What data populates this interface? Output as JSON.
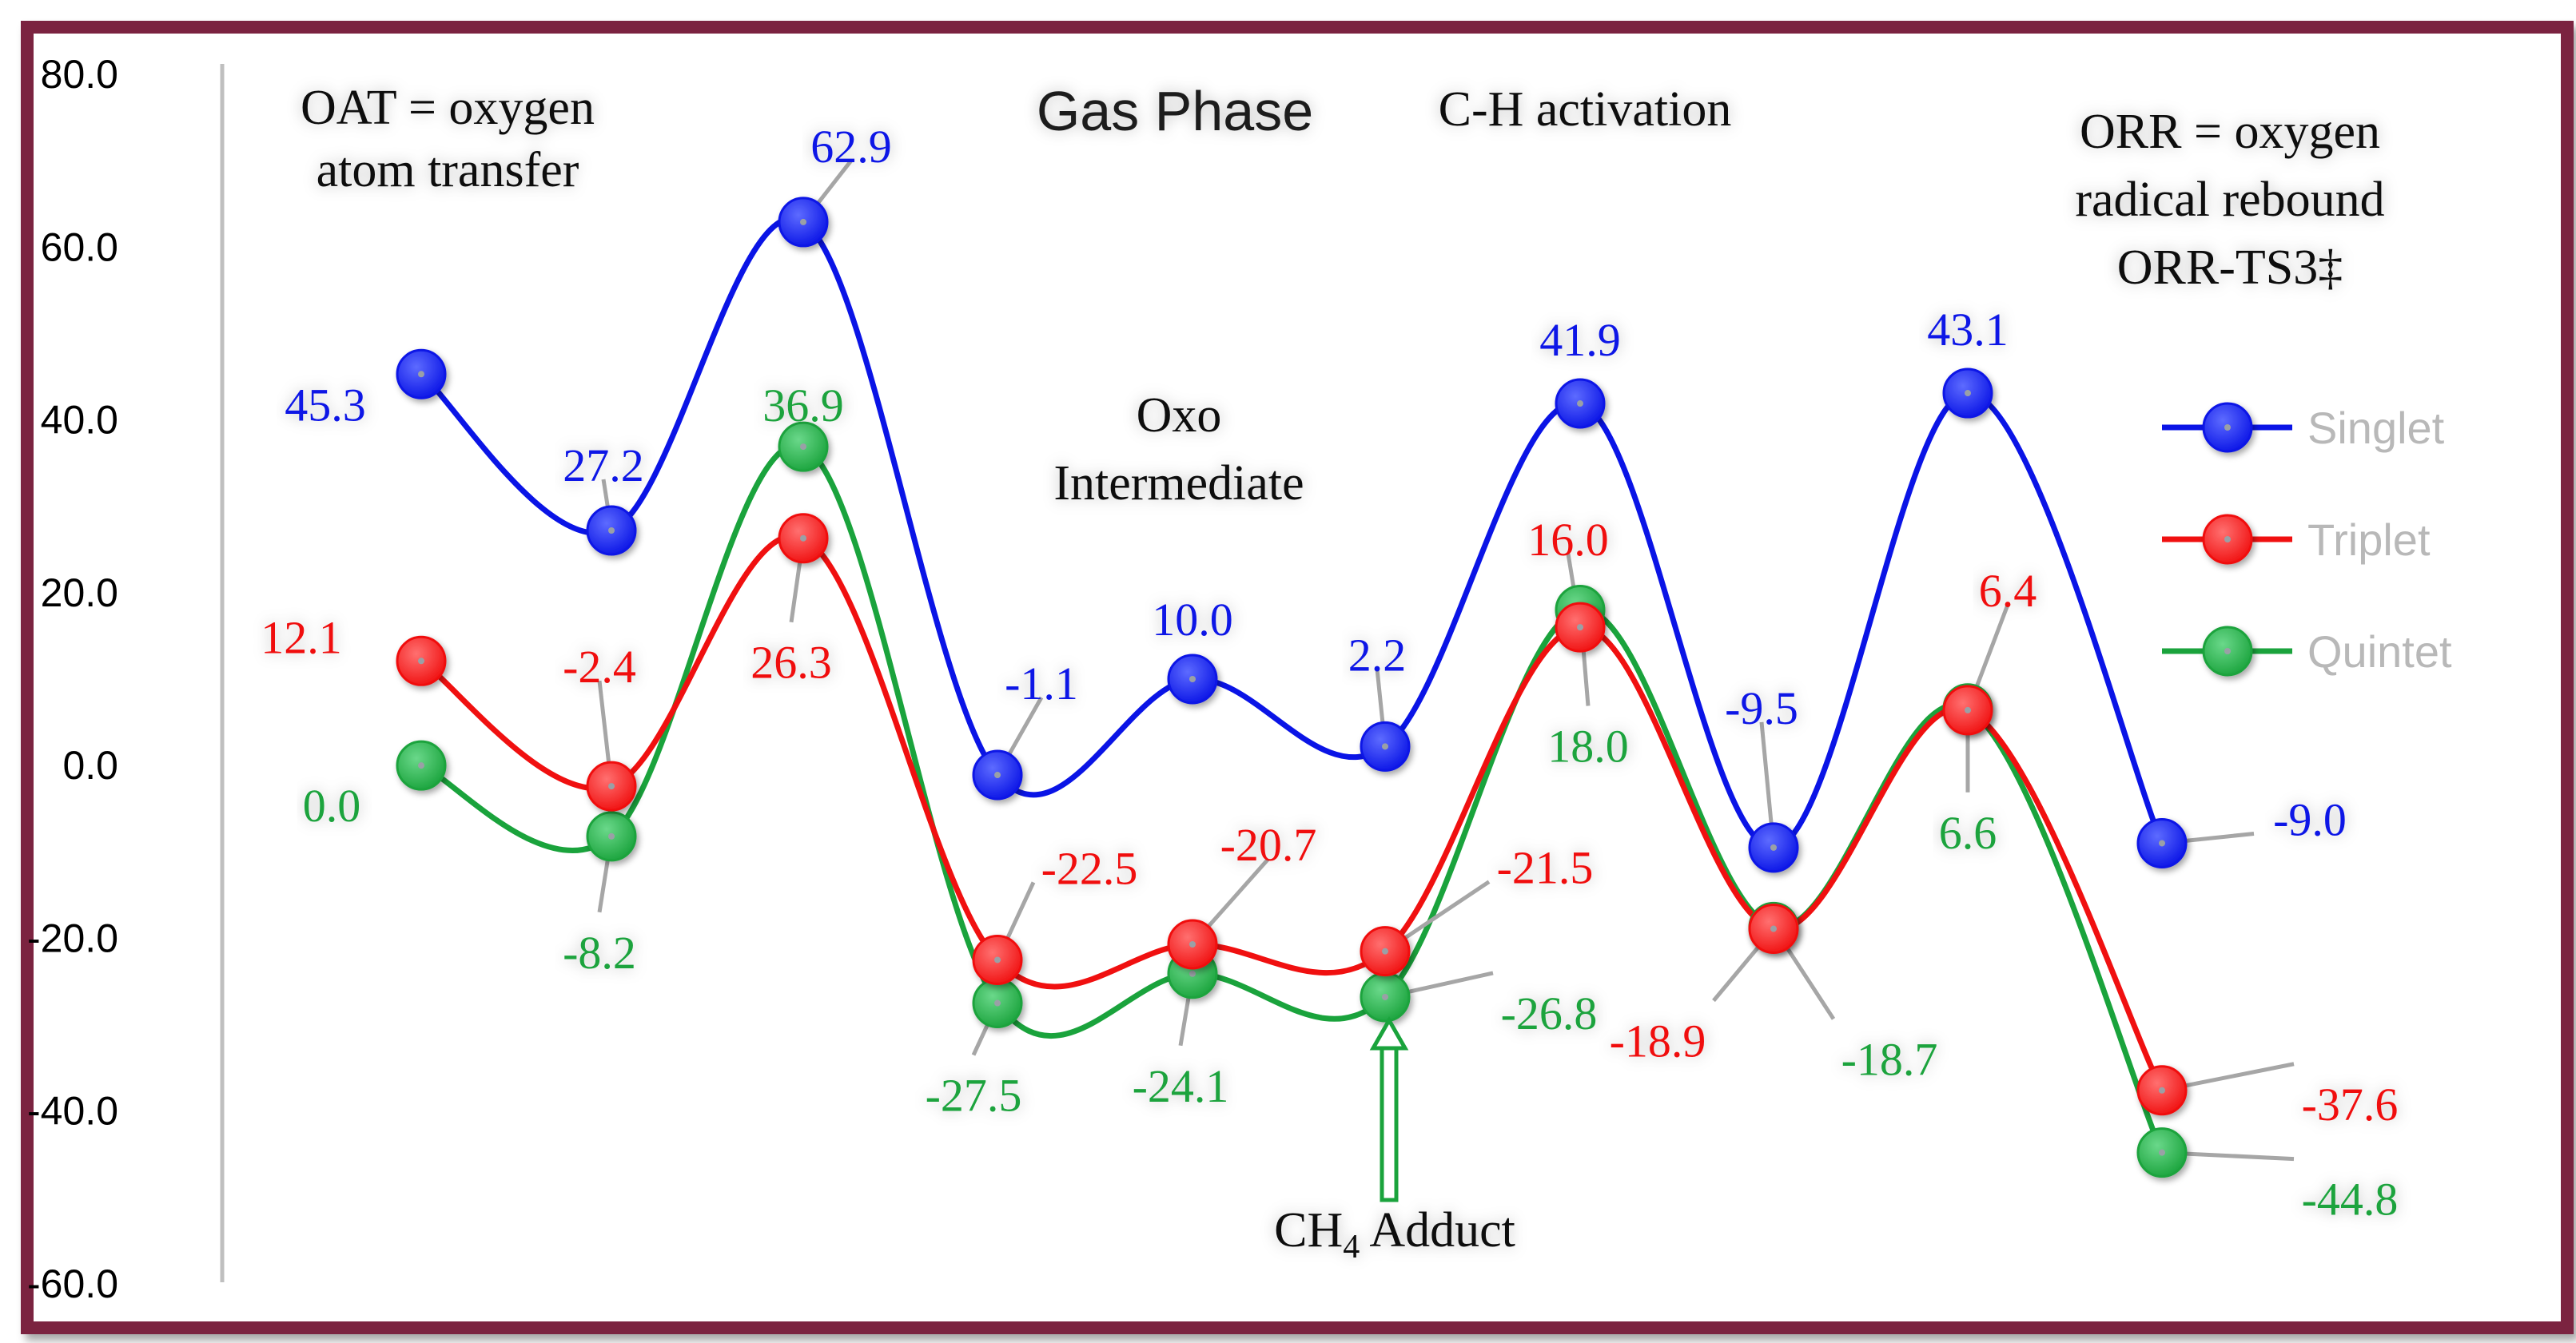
{
  "chart_data": {
    "type": "line",
    "title": "Gas Phase",
    "ylim": [
      -60,
      80
    ],
    "yticks": [
      "80.0",
      "60.0",
      "40.0",
      "20.0",
      "0.0",
      "-20.0",
      "-40.0",
      "-60.0"
    ],
    "ytick_values": [
      80,
      60,
      40,
      20,
      0,
      -20,
      -40,
      -60
    ],
    "x": [
      1,
      2,
      3,
      4,
      5,
      6,
      7,
      8,
      9,
      10
    ],
    "series": [
      {
        "name": "Singlet",
        "color": "#0a14e6",
        "values": [
          45.3,
          27.2,
          62.9,
          -1.1,
          10.0,
          2.2,
          41.9,
          -9.5,
          43.1,
          -9.0
        ],
        "labels": [
          "45.3",
          "27.2",
          "62.9",
          "-1.1",
          "10.0",
          "2.2",
          "41.9",
          "-9.5",
          "43.1",
          "-9.0"
        ]
      },
      {
        "name": "Triplet",
        "color": "#f01010",
        "values": [
          12.1,
          -2.4,
          26.3,
          -22.5,
          -20.7,
          -21.5,
          16.0,
          -18.9,
          6.4,
          -37.6
        ],
        "labels": [
          "12.1",
          "-2.4",
          "26.3",
          "-22.5",
          "-20.7",
          "-21.5",
          "16.0",
          "-18.9",
          "6.4",
          "-37.6"
        ]
      },
      {
        "name": "Quintet",
        "color": "#1aa33c",
        "values": [
          0.0,
          -8.2,
          36.9,
          -27.5,
          -24.1,
          -26.8,
          18.0,
          -18.7,
          6.6,
          -44.8
        ],
        "labels": [
          "0.0",
          "-8.2",
          "36.9",
          "-27.5",
          "-24.1",
          "-26.8",
          "18.0",
          "-18.7",
          "6.6",
          "-44.8"
        ]
      }
    ],
    "legend": [
      "Singlet",
      "Triplet",
      "Quintet"
    ],
    "legend_position": "right"
  },
  "annotations": {
    "oat_line1": "OAT = oxygen",
    "oat_line2": "atom transfer",
    "title": "Gas Phase",
    "ch_activation": "C-H activation",
    "orr_line1": "ORR = oxygen",
    "orr_line2": "radical rebound",
    "orr_line3": "ORR-TS3‡",
    "oxo_line1": "Oxo",
    "oxo_line2": "Intermediate",
    "adduct_ch": "CH",
    "adduct_sub": "4",
    "adduct_rest": " Adduct"
  },
  "colors": {
    "frame": "#7b2340",
    "singlet": "#0a14e6",
    "triplet": "#f01010",
    "quintet": "#1aa33c",
    "leader": "#a6a6a6",
    "legend_text": "#b8b8b8"
  }
}
